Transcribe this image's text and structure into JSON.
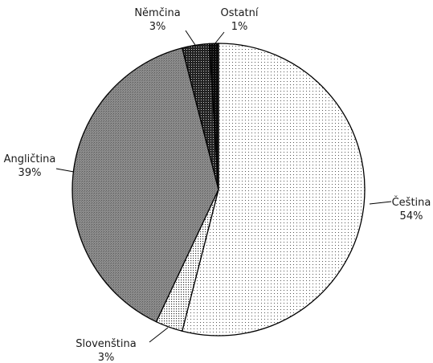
{
  "chart_data": {
    "type": "pie",
    "slices": [
      {
        "label": "Čeština",
        "value": 54,
        "value_label": "54%",
        "pattern": "fine-dots"
      },
      {
        "label": "Slovenština",
        "value": 3,
        "value_label": "3%",
        "pattern": "coarse-dots"
      },
      {
        "label": "Angličtina",
        "value": 39,
        "value_label": "39%",
        "pattern": "dark-hatch"
      },
      {
        "label": "Němčina",
        "value": 3,
        "value_label": "3%",
        "pattern": "dark-dots"
      },
      {
        "label": "Ostatní",
        "value": 1,
        "value_label": "1%",
        "pattern": "black-dots"
      }
    ],
    "start": "12 o'clock",
    "direction": "clockwise",
    "colors": {
      "outline": "#000000",
      "background": "#ffffff"
    }
  }
}
